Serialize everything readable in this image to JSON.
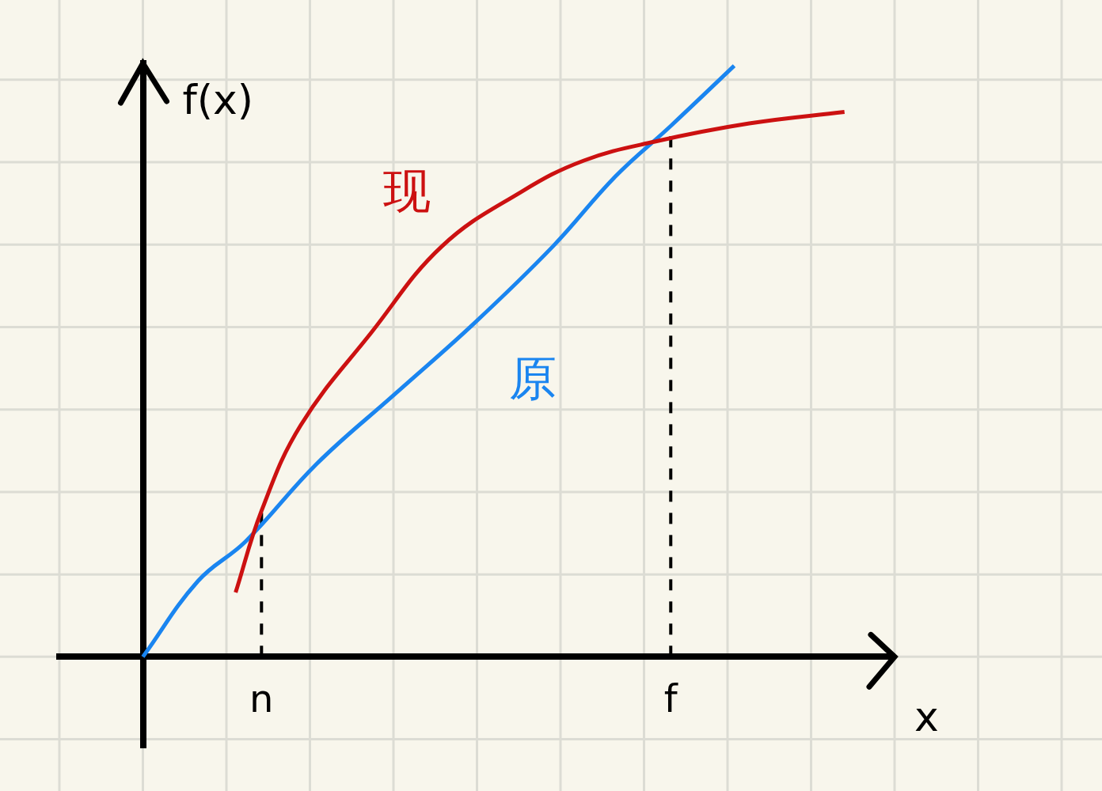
{
  "chart_data": {
    "type": "line",
    "x_label": "x",
    "y_label": "f(x)",
    "xlim": [
      -1,
      9
    ],
    "ylim": [
      -1.1,
      7.2
    ],
    "xticks": [
      {
        "value": 1.42,
        "label": "n"
      },
      {
        "value": 6.32,
        "label": "f"
      }
    ],
    "tick_labels": "x",
    "grid": true,
    "series": [
      {
        "name": "现",
        "color": "#cc1111",
        "x": [
          1.11,
          1.42,
          1.89,
          2.74,
          3.58,
          4.53,
          5.28,
          6.13,
          7.26,
          8.4
        ],
        "values": [
          0.78,
          1.77,
          2.81,
          3.94,
          4.98,
          5.64,
          6.02,
          6.25,
          6.47,
          6.61
        ]
      },
      {
        "name": "原",
        "color": "#1a85f0",
        "x": [
          0,
          0.66,
          1.23,
          2.08,
          3.02,
          3.96,
          4.91,
          5.66,
          6.32,
          7.08
        ],
        "values": [
          0,
          0.92,
          1.4,
          2.34,
          3.19,
          4.04,
          4.98,
          5.83,
          6.44,
          7.17
        ]
      }
    ],
    "dashed_lines": [
      {
        "x": 1.42,
        "y": 1.77
      },
      {
        "x": 6.32,
        "y": 6.44
      }
    ]
  }
}
